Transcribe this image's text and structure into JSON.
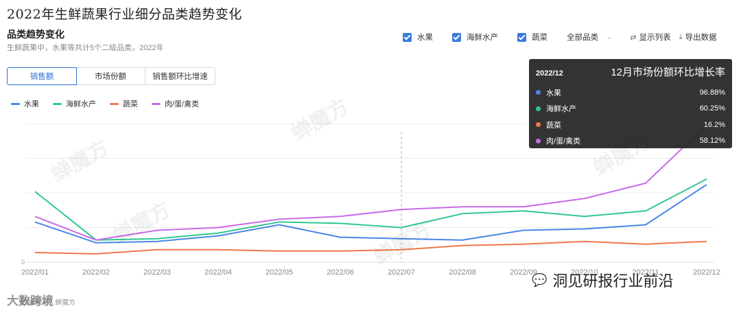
{
  "main_title": "2022年生鲜蔬果行业细分品类趋势变化",
  "section": {
    "title": "品类趋势变化",
    "subtitle": "生鲜蔬果中，水果等共计5个二级品类，2022年"
  },
  "filters": {
    "checkboxes": [
      "水果",
      "海鲜水产",
      "蔬菜"
    ],
    "select_all": "全部品类",
    "show_list": "显示列表",
    "export": "导出数据"
  },
  "tabs": [
    "销售额",
    "市场份额",
    "销售额环比增速"
  ],
  "active_tab": 0,
  "chart_data": {
    "type": "line",
    "x": [
      "2022/01",
      "2022/02",
      "2022/03",
      "2022/04",
      "2022/05",
      "2022/06",
      "2022/07",
      "2022/08",
      "2022/09",
      "2022/10",
      "2022/11",
      "2022/12"
    ],
    "ytick_label": "0",
    "ylim": [
      0,
      100
    ],
    "grid": true,
    "series": [
      {
        "name": "水果",
        "color": "#4a86e8",
        "values": [
          29,
          14,
          15,
          19,
          27,
          18,
          17,
          16,
          23,
          24,
          27,
          56
        ]
      },
      {
        "name": "海鲜水产",
        "color": "#2fc891",
        "values": [
          51,
          16,
          17,
          21,
          29,
          28,
          25,
          35,
          37,
          33,
          37,
          60
        ]
      },
      {
        "name": "蔬菜",
        "color": "#f0784b",
        "values": [
          7,
          6,
          9,
          9,
          8,
          8,
          9,
          12,
          13,
          15,
          13,
          15
        ]
      },
      {
        "name": "肉/蛋/禽类",
        "color": "#c86ae8",
        "values": [
          33,
          16,
          23,
          25,
          31,
          33,
          38,
          40,
          40,
          46,
          57,
          99
        ]
      }
    ],
    "highlight_x": "2022/07"
  },
  "tooltip": {
    "date": "2022/12",
    "title": "12月市场份额环比增长率",
    "rows": [
      {
        "name": "水果",
        "value": "96.88%",
        "color": "#4a86e8"
      },
      {
        "name": "海鲜水产",
        "value": "60.25%",
        "color": "#2fc891"
      },
      {
        "name": "蔬菜",
        "value": "16.2%",
        "color": "#f0784b"
      },
      {
        "name": "肉/蛋/禽类",
        "value": "58.12%",
        "color": "#c86ae8"
      }
    ]
  },
  "watermark": "蝉魔方",
  "wechat_label": "洞见研报行业前沿",
  "corner_watermark": "大数跨境",
  "source": "数据来源：蝉魔方"
}
